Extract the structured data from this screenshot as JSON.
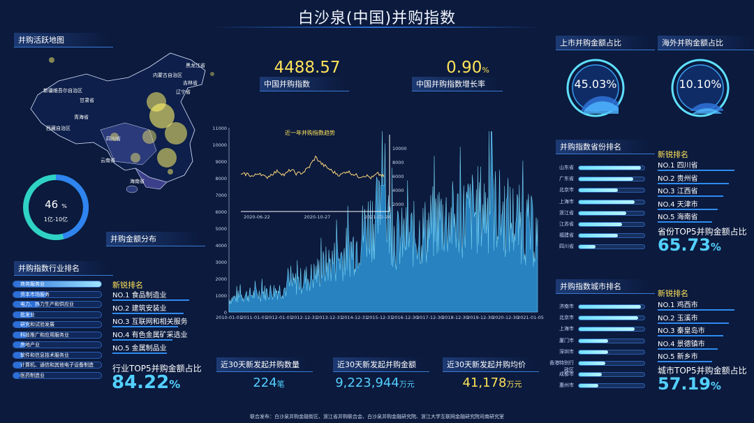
{
  "title": "白沙泉(中国)并购指数",
  "map": {
    "section": "并购活跃地图",
    "regions": [
      "黑龙江省",
      "内蒙古自治区",
      "吉林省",
      "辽宁省",
      "新疆维吾尔自治区",
      "甘肃省",
      "青海省",
      "西藏自治区",
      "四川省",
      "云南省",
      "海南省"
    ]
  },
  "donut": {
    "value": "46",
    "unit": "%",
    "label": "1亿-10亿",
    "section": "并购金额分布",
    "fraction": 0.46
  },
  "index": {
    "value": "4488.57",
    "label": "中国并购指数"
  },
  "growth": {
    "value": "0.90",
    "unit": "%",
    "label": "中国并购指数增长率"
  },
  "listed_ratio": {
    "section": "上市并购金额占比",
    "value": "45.03%",
    "fraction": 0.4503
  },
  "overseas_ratio": {
    "section": "海外并购金额占比",
    "value": "10.10%",
    "fraction": 0.101
  },
  "industry": {
    "section": "并购指数行业排名",
    "bars": [
      {
        "label": "商务服务业",
        "value": 1.0
      },
      {
        "label": "资本市场服务",
        "value": 0.38
      },
      {
        "label": "电力、热力生产和供应业",
        "value": 0.3
      },
      {
        "label": "批发业",
        "value": 0.22
      },
      {
        "label": "研究和试验发展",
        "value": 0.18
      },
      {
        "label": "科技推广和应用服务业",
        "value": 0.16
      },
      {
        "label": "房地产业",
        "value": 0.14
      },
      {
        "label": "软件和信息技术服务业",
        "value": 0.12
      },
      {
        "label": "计算机、通信和其他电子设备制造",
        "value": 0.1
      },
      {
        "label": "医药制造业",
        "value": 0.08
      }
    ],
    "new_title": "新锐排名",
    "new_list": [
      "NO.1  食品制造业",
      "NO.2  建筑安装业",
      "NO.3  互联网和相关服务",
      "NO.4  有色金属矿采选业",
      "NO.5  金属制品业"
    ],
    "top5_label": "行业TOP5并购金额占比",
    "top5_value": "84.22",
    "top5_unit": "%"
  },
  "province": {
    "section": "并购指数省份排名",
    "bars": [
      {
        "label": "山东省",
        "value": 0.95
      },
      {
        "label": "广东省",
        "value": 0.83
      },
      {
        "label": "北京市",
        "value": 0.6
      },
      {
        "label": "上海市",
        "value": 0.85
      },
      {
        "label": "浙江省",
        "value": 0.72
      },
      {
        "label": "江苏省",
        "value": 0.66
      },
      {
        "label": "福建省",
        "value": 0.6
      },
      {
        "label": "四川省",
        "value": 0.25
      }
    ],
    "new_title": "新锐排名",
    "new_list": [
      "NO.1  四川省",
      "NO.2  贵州省",
      "NO.3  江西省",
      "NO.4  天津市",
      "NO.5  海南省"
    ],
    "top5_label": "省份TOP5并购金额占比",
    "top5_value": "65.73",
    "top5_unit": "%"
  },
  "city": {
    "section": "并购指数城市排名",
    "bars": [
      {
        "label": "济南市",
        "value": 0.95
      },
      {
        "label": "北京市",
        "value": 0.9
      },
      {
        "label": "上海市",
        "value": 0.85
      },
      {
        "label": "厦门市",
        "value": 0.45
      },
      {
        "label": "深圳市",
        "value": 0.45
      },
      {
        "label": "香港特别行政区",
        "value": 0.4
      },
      {
        "label": "成都市",
        "value": 0.35
      },
      {
        "label": "惠州市",
        "value": 0.3
      }
    ],
    "new_title": "新锐排名",
    "new_list": [
      "NO.1  鸡西市",
      "NO.2  玉溪市",
      "NO.3  秦皇岛市",
      "NO.4  景德镇市",
      "NO.5  新乡市"
    ],
    "top5_label": "城市TOP5并购金额占比",
    "top5_value": "57.19",
    "top5_unit": "%"
  },
  "stats": [
    {
      "label": "近30天新发起并购数量",
      "value": "224",
      "unit": "笔"
    },
    {
      "label": "近30天新发起并购金额",
      "value": "9,223,944",
      "unit": "万元"
    },
    {
      "label": "近30天新发起并购均价",
      "value": "41,178",
      "unit": "万元"
    }
  ],
  "chart_data": [
    {
      "type": "area",
      "title": "",
      "ylim": [
        0,
        11000
      ],
      "y_ticks": [
        "0",
        "1000",
        "2000",
        "3000",
        "4000",
        "5000",
        "6000",
        "7000",
        "8000",
        "9000",
        "10000",
        "11000"
      ],
      "x_ticks": [
        "2010-01-01",
        "2011-01-01",
        "2012-01-01",
        "2012-12-31",
        "2013-12-31",
        "2014-12-31",
        "2015-12-31",
        "2016-12-30",
        "2017-12-30",
        "2018-12-30",
        "2019-12-30",
        "2020-12-30",
        "2021-01-05"
      ],
      "approx_envelope": [
        900,
        1200,
        1300,
        1500,
        1700,
        2200,
        2600,
        3400,
        4000,
        4800,
        6500,
        7200,
        5200,
        5500,
        5800,
        6800,
        6600,
        7000,
        7500,
        7400,
        6800,
        6200,
        5500
      ]
    },
    {
      "type": "line",
      "title": "近一年并购指数趋势",
      "x_ticks": [
        "2020-06-22",
        "2020-10-27",
        "2021-02-24"
      ],
      "y_ticks": [
        "2000",
        "4000",
        "6000",
        "8000",
        "10000"
      ],
      "ylim": [
        0,
        11000
      ],
      "approx_values": [
        8200,
        8300,
        8100,
        8400,
        8000,
        8300,
        8500,
        8200,
        8600,
        8300,
        8400,
        8800,
        9500,
        9000,
        8700,
        8400,
        8200,
        8500,
        8300,
        8100,
        8200,
        8000,
        8300,
        8100
      ]
    }
  ],
  "footer": "联合发布：白沙泉并购金融街区、浙江省并购联合会、白沙泉并购金融研究院、浙江大学互联网金融研究院司南研究室"
}
